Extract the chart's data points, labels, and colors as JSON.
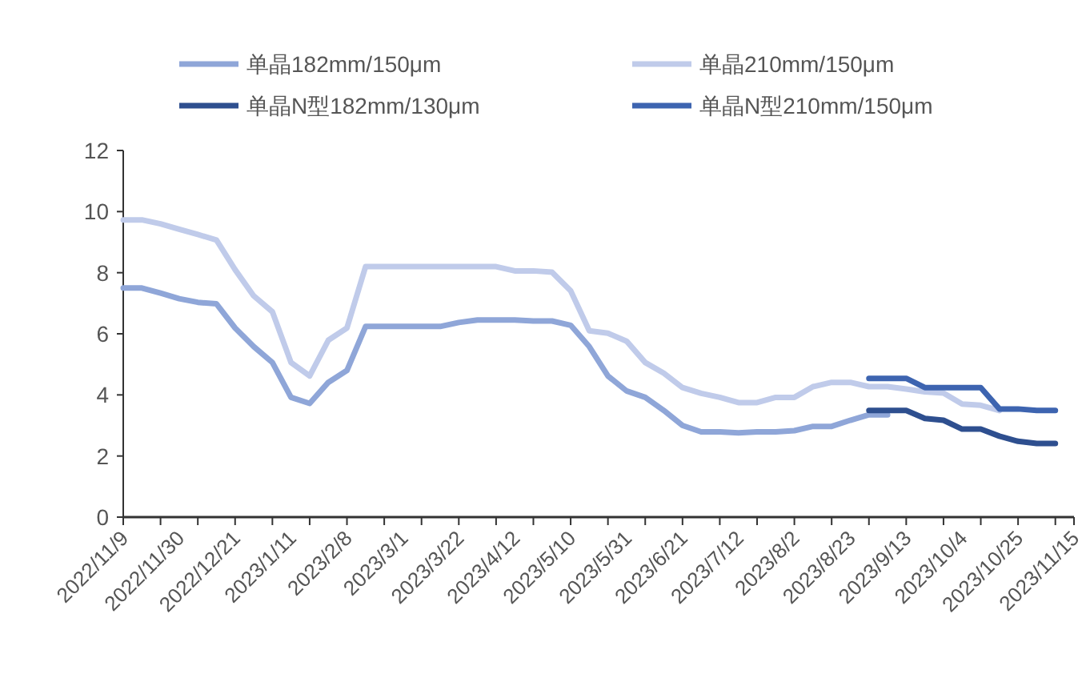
{
  "chart_data": {
    "type": "line",
    "categories": [
      "2022/11/9",
      null,
      null,
      "2022/11/30",
      null,
      null,
      "2022/12/21",
      null,
      null,
      "2023/1/11",
      null,
      null,
      "2023/2/8",
      null,
      null,
      "2023/3/1",
      null,
      null,
      "2023/3/22",
      null,
      null,
      "2023/4/12",
      null,
      null,
      "2023/5/10",
      null,
      null,
      "2023/5/31",
      null,
      null,
      "2023/6/21",
      null,
      null,
      "2023/7/12",
      null,
      null,
      "2023/8/2",
      null,
      null,
      "2023/8/23",
      null,
      null,
      "2023/9/13",
      null,
      null,
      "2023/10/4",
      null,
      null,
      "2023/10/25",
      null,
      null,
      "2023/11/15"
    ],
    "series": [
      {
        "name": "单晶182mm/150μm",
        "color": "#8fa6d8",
        "values": [
          7.5,
          7.5,
          7.33,
          7.15,
          7.03,
          6.98,
          6.19,
          5.58,
          5.06,
          3.92,
          3.72,
          4.41,
          4.8,
          6.24,
          6.24,
          6.24,
          6.24,
          6.24,
          6.37,
          6.45,
          6.45,
          6.45,
          6.42,
          6.42,
          6.28,
          5.58,
          4.62,
          4.13,
          3.92,
          3.49,
          3.0,
          2.79,
          2.79,
          2.76,
          2.79,
          2.79,
          2.83,
          2.97,
          2.97,
          3.17,
          3.35,
          3.35,
          null,
          null,
          null,
          null,
          null,
          null,
          null,
          null,
          null,
          null
        ]
      },
      {
        "name": "单晶210mm/150μm",
        "color": "#c0cbea",
        "values": [
          9.73,
          9.73,
          9.6,
          9.42,
          9.25,
          9.07,
          8.1,
          7.24,
          6.72,
          5.06,
          4.62,
          5.79,
          6.19,
          8.2,
          8.2,
          8.2,
          8.2,
          8.2,
          8.2,
          8.2,
          8.2,
          8.06,
          8.06,
          8.02,
          7.41,
          6.1,
          6.02,
          5.76,
          5.06,
          4.71,
          4.24,
          4.05,
          3.92,
          3.75,
          3.75,
          3.92,
          3.92,
          4.27,
          4.41,
          4.41,
          4.27,
          4.27,
          4.19,
          4.1,
          4.06,
          3.7,
          3.66,
          3.49,
          null,
          null,
          null,
          null
        ]
      },
      {
        "name": "单晶N型182mm/130μm",
        "color": "#2e4f8f",
        "values": [
          null,
          null,
          null,
          null,
          null,
          null,
          null,
          null,
          null,
          null,
          null,
          null,
          null,
          null,
          null,
          null,
          null,
          null,
          null,
          null,
          null,
          null,
          null,
          null,
          null,
          null,
          null,
          null,
          null,
          null,
          null,
          null,
          null,
          null,
          null,
          null,
          null,
          null,
          null,
          null,
          3.49,
          3.49,
          3.49,
          3.23,
          3.17,
          2.88,
          2.88,
          2.65,
          2.48,
          2.41,
          2.41,
          null
        ]
      },
      {
        "name": "单晶N型210mm/150μm",
        "color": "#3d64b0",
        "values": [
          null,
          null,
          null,
          null,
          null,
          null,
          null,
          null,
          null,
          null,
          null,
          null,
          null,
          null,
          null,
          null,
          null,
          null,
          null,
          null,
          null,
          null,
          null,
          null,
          null,
          null,
          null,
          null,
          null,
          null,
          null,
          null,
          null,
          null,
          null,
          null,
          null,
          null,
          null,
          null,
          4.54,
          4.54,
          4.54,
          4.24,
          4.24,
          4.24,
          4.24,
          3.54,
          3.54,
          3.49,
          3.49,
          null
        ]
      }
    ],
    "ylim": [
      0,
      12
    ],
    "yticks": [
      0,
      2,
      4,
      6,
      8,
      10,
      12
    ],
    "legend": "top",
    "line_style": "solid",
    "marker": "none",
    "grid": false
  }
}
